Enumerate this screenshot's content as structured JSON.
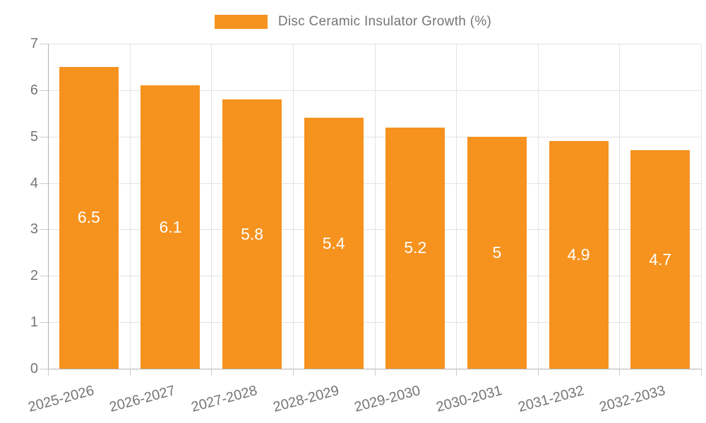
{
  "chart_data": {
    "type": "bar",
    "title": "",
    "legend": "Disc Ceramic Insulator Growth (%)",
    "legend_position": "top-center",
    "categories": [
      "2025-2026",
      "2026-2027",
      "2027-2028",
      "2028-2029",
      "2029-2030",
      "2030-2031",
      "2031-2032",
      "2032-2033"
    ],
    "values": [
      6.5,
      6.1,
      5.8,
      5.4,
      5.2,
      5,
      4.9,
      4.7
    ],
    "value_labels": [
      "6.5",
      "6.1",
      "5.8",
      "5.4",
      "5.2",
      "5",
      "4.9",
      "4.7"
    ],
    "xlabel": "",
    "ylabel": "",
    "ylim": [
      0,
      7
    ],
    "yticks": [
      0,
      1,
      2,
      3,
      4,
      5,
      6,
      7
    ],
    "grid": true,
    "colors": {
      "bar": "#F6921E",
      "bar_value_text": "#FFFFFF",
      "axis_text": "#757575",
      "legend_text": "#757575",
      "grid_line": "#E3E3E3",
      "axis_line": "#B3B3B3",
      "tick_mark": "#CCCCCC",
      "background": "#FFFFFF"
    }
  }
}
